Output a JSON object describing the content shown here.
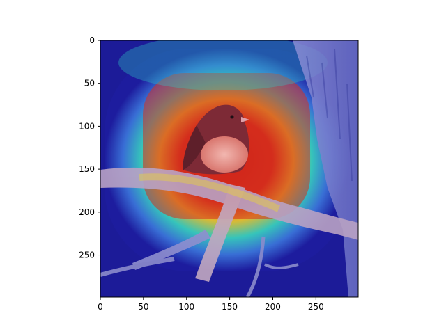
{
  "chart_data": {
    "type": "heatmap",
    "title": "",
    "xlabel": "",
    "ylabel": "",
    "xlim": [
      0,
      299
    ],
    "ylim": [
      299,
      0
    ],
    "y_axis_inverted": true,
    "grid": false,
    "legend": "none",
    "x_ticks": [
      0,
      50,
      100,
      150,
      200,
      250
    ],
    "y_ticks": [
      0,
      50,
      100,
      150,
      200,
      250
    ],
    "x_tick_labels": [
      "0",
      "50",
      "100",
      "150",
      "200",
      "250"
    ],
    "y_tick_labels": [
      "0",
      "50",
      "100",
      "150",
      "200",
      "250"
    ],
    "image_content": "photo of a small bird (dark-eyed junco) perched on a tree branch, overlaid with a jet-colormap attention heatmap",
    "colormap": "jet",
    "heatmap_peak_center": [
      135,
      145
    ],
    "heatmap_peak_value": 1.0,
    "colors": {
      "low": "#1a1a9c",
      "mid": "#2fd0c0",
      "high": "#d42a1e"
    }
  }
}
